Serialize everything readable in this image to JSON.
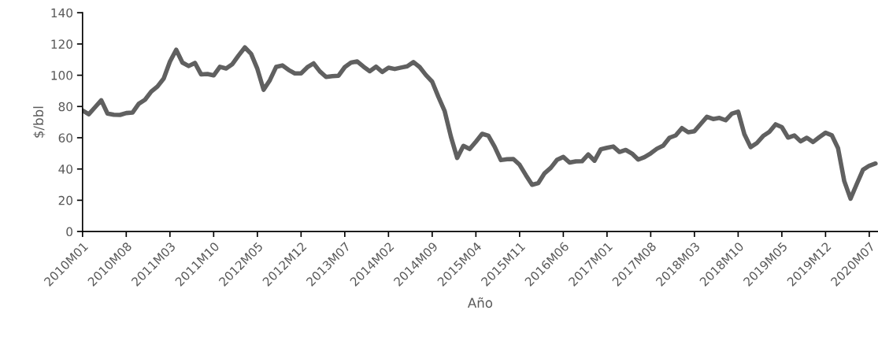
{
  "chart_data": {
    "type": "line",
    "xlabel": "Año",
    "ylabel": "$/bbl",
    "categories": [
      "2010M01",
      null,
      null,
      null,
      null,
      null,
      null,
      "2010M08",
      null,
      null,
      null,
      null,
      null,
      null,
      "2011M03",
      null,
      null,
      null,
      null,
      null,
      null,
      "2011M10",
      null,
      null,
      null,
      null,
      null,
      null,
      "2012M05",
      null,
      null,
      null,
      null,
      null,
      null,
      "2012M12",
      null,
      null,
      null,
      null,
      null,
      null,
      "2013M07",
      null,
      null,
      null,
      null,
      null,
      null,
      "2014M02",
      null,
      null,
      null,
      null,
      null,
      null,
      "2014M09",
      null,
      null,
      null,
      null,
      null,
      null,
      "2015M04",
      null,
      null,
      null,
      null,
      null,
      null,
      "2015M11",
      null,
      null,
      null,
      null,
      null,
      null,
      "2016M06",
      null,
      null,
      null,
      null,
      null,
      null,
      "2017M01",
      null,
      null,
      null,
      null,
      null,
      null,
      "2017M08",
      null,
      null,
      null,
      null,
      null,
      null,
      "2018M03",
      null,
      null,
      null,
      null,
      null,
      null,
      "2018M10",
      null,
      null,
      null,
      null,
      null,
      null,
      "2019M05",
      null,
      null,
      null,
      null,
      null,
      null,
      "2019M12",
      null,
      null,
      null,
      null,
      null,
      null,
      "2020M07",
      null
    ],
    "series": [
      {
        "color": "#606060",
        "values": [
          77.5,
          75,
          79.5,
          84,
          75.5,
          74.7,
          74.6,
          75.8,
          76.1,
          81.7,
          84.3,
          89.5,
          92.8,
          97.9,
          108.7,
          116.3,
          108.1,
          105.9,
          107.9,
          100.5,
          100.8,
          99.9,
          105.4,
          104.3,
          107.1,
          112.7,
          117.8,
          113.7,
          104.1,
          90.7,
          96.8,
          105.3,
          106.3,
          103.4,
          101.2,
          101.2,
          105.1,
          107.6,
          102.5,
          98.9,
          99.4,
          99.7,
          105.2,
          108.1,
          108.8,
          105.5,
          102.6,
          105.5,
          102.1,
          104.8,
          104.0,
          104.9,
          105.7,
          108.4,
          105.2,
          100.1,
          95.9,
          86.1,
          77.0,
          60.7,
          47.1,
          54.8,
          52.8,
          57.5,
          62.5,
          61.3,
          54.3,
          45.7,
          46.3,
          46.4,
          42.7,
          36.1,
          29.9,
          31.0,
          37.3,
          40.8,
          45.9,
          47.7,
          44.1,
          44.9,
          45.0,
          49.3,
          45.3,
          52.6,
          53.6,
          54.4,
          50.9,
          52.2,
          49.9,
          46.0,
          47.6,
          50.0,
          53.0,
          55.0,
          60.0,
          61.5,
          66.2,
          63.5,
          64.2,
          68.8,
          73.4,
          72.0,
          72.7,
          71.2,
          75.4,
          76.7,
          62.3,
          54.0,
          56.6,
          61.1,
          63.8,
          68.6,
          66.8,
          60.1,
          61.5,
          57.7,
          60.0,
          57.3,
          60.4,
          63.2,
          61.6,
          53.3,
          32.2,
          21.0,
          30.4,
          39.5,
          42.1,
          43.5
        ]
      }
    ],
    "ylim": [
      0,
      140
    ],
    "yticks": [
      0,
      20,
      40,
      60,
      80,
      100,
      120,
      140
    ],
    "grid": false,
    "marker": "none",
    "line_style": "solid"
  }
}
